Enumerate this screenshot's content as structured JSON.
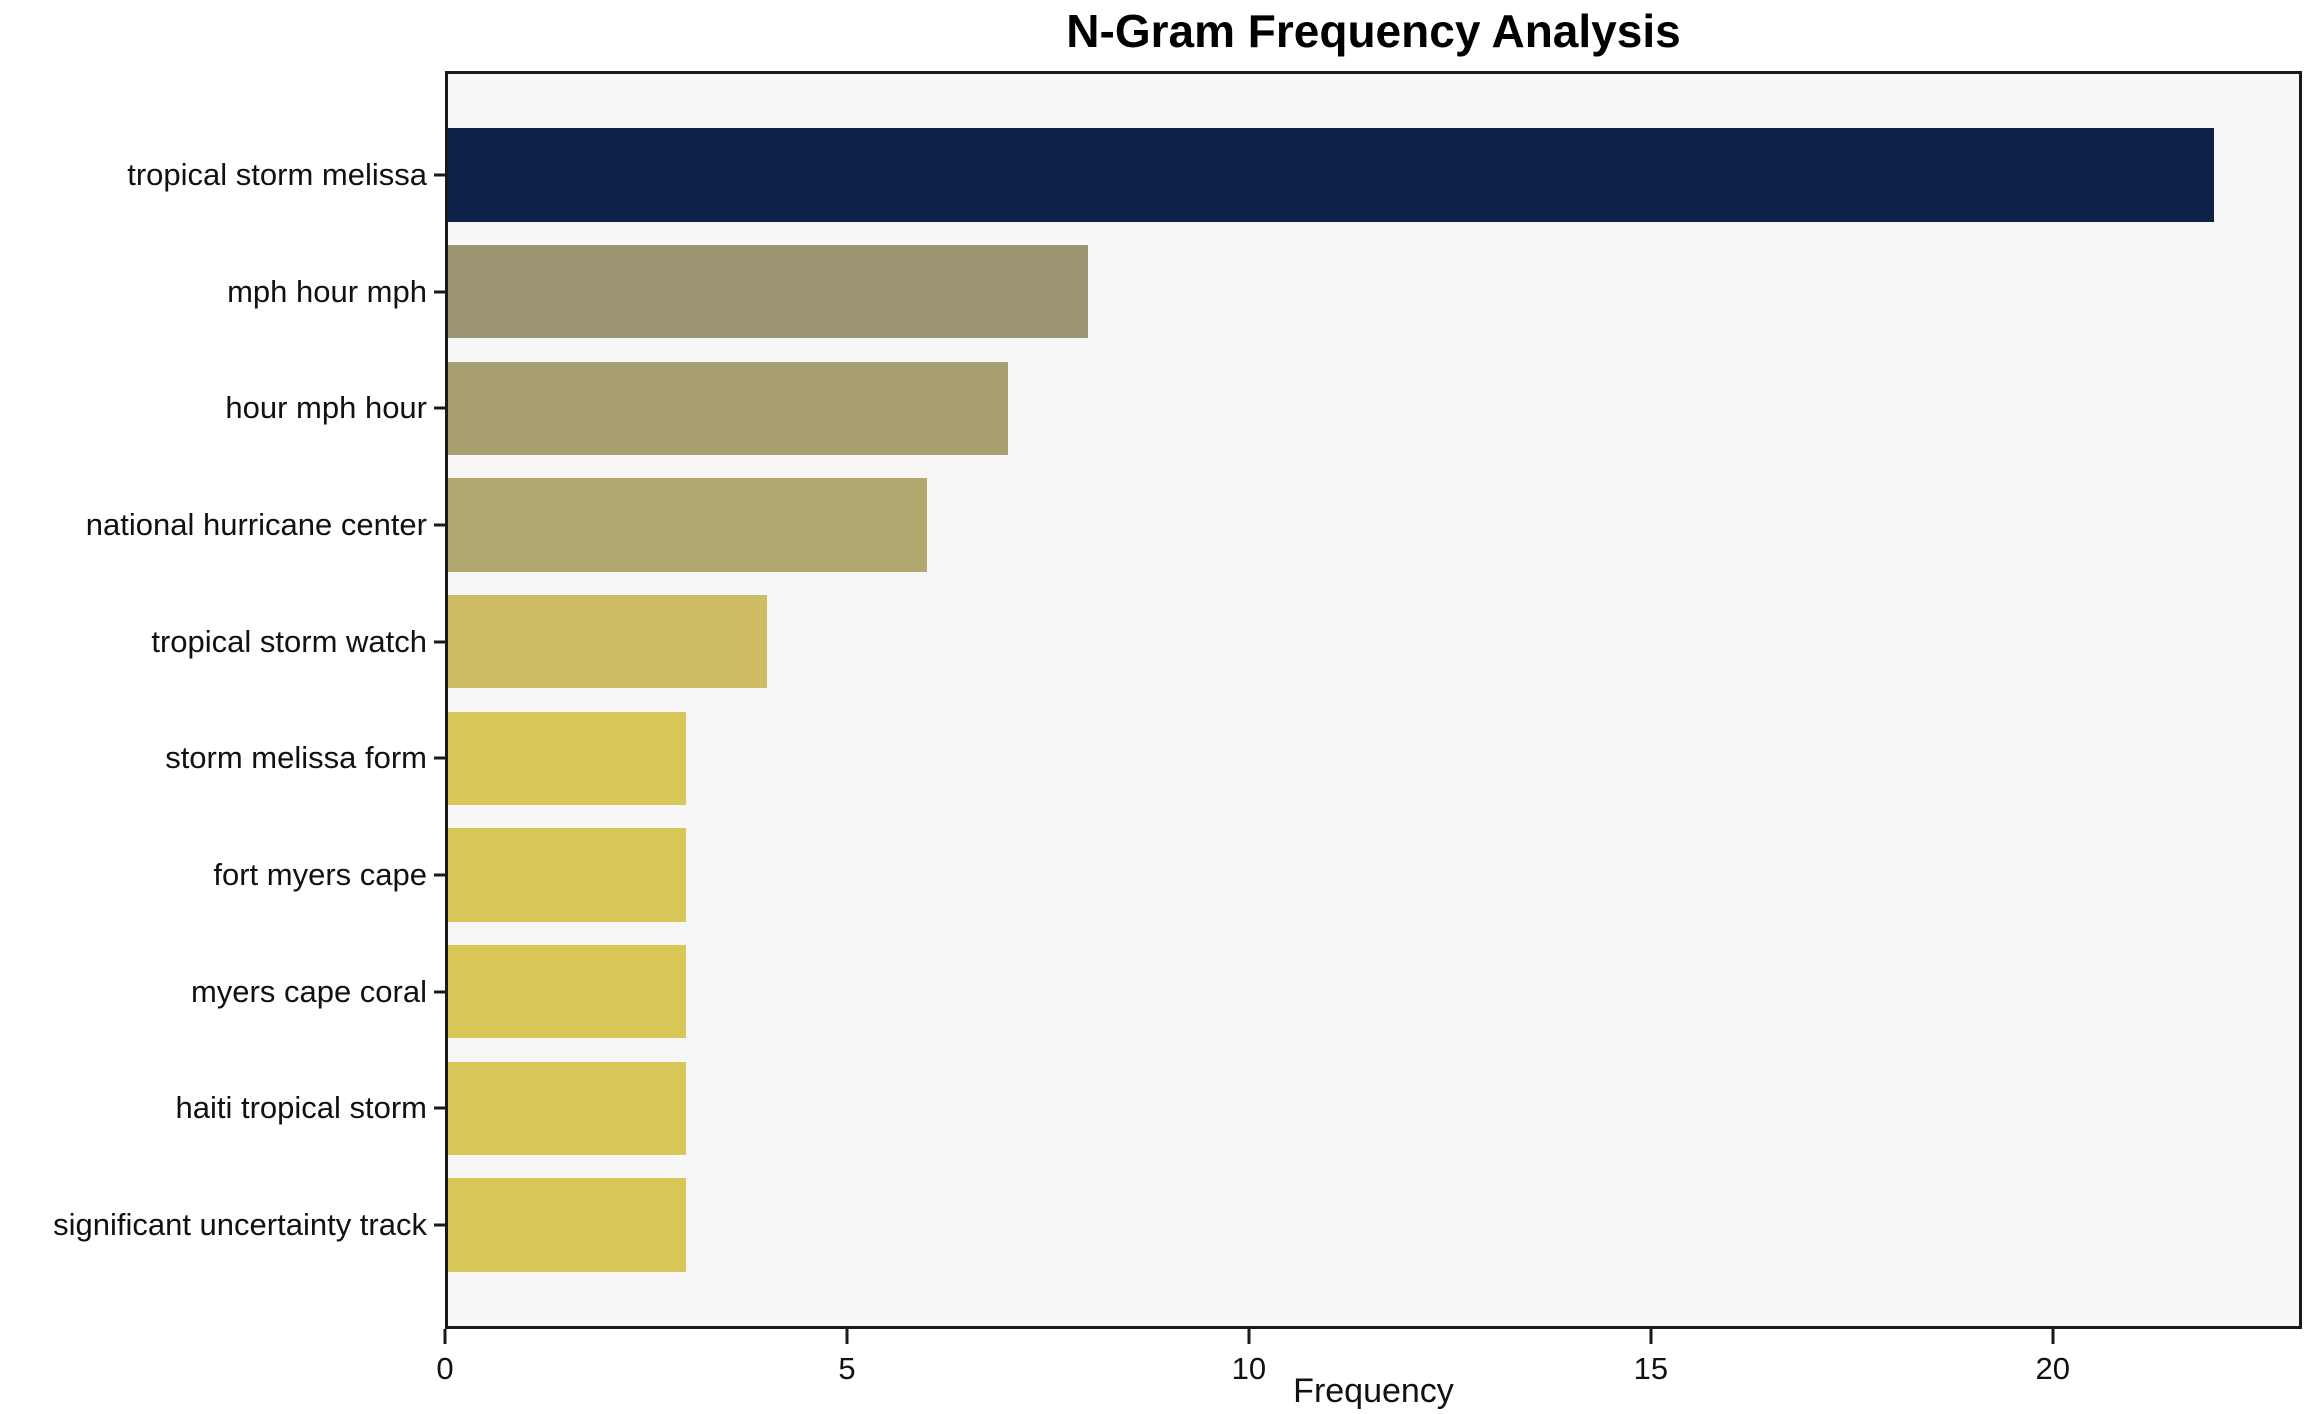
{
  "chart_data": {
    "type": "bar",
    "orientation": "horizontal",
    "title": "N-Gram Frequency Analysis",
    "xlabel": "Frequency",
    "ylabel": "",
    "categories": [
      "tropical storm melissa",
      "mph hour mph",
      "hour mph hour",
      "national hurricane center",
      "tropical storm watch",
      "storm melissa form",
      "fort myers cape",
      "myers cape coral",
      "haiti tropical storm",
      "significant uncertainty track"
    ],
    "values": [
      22,
      8,
      7,
      6,
      4,
      3,
      3,
      3,
      3,
      3
    ],
    "bar_colors": [
      "#0d2347",
      "#9d9674",
      "#a89f70",
      "#b2a76e",
      "#cdbc62",
      "#d8c757",
      "#d8c757",
      "#d8c757",
      "#d8c757",
      "#d8c757"
    ],
    "xlim": [
      0,
      23.1
    ],
    "xticks": [
      0,
      5,
      10,
      15,
      20
    ],
    "grid": false,
    "legend": null,
    "plot_bg": "#f7f7f7",
    "figure_bg": "#ffffff",
    "spine_color": "#1a1a1a"
  }
}
